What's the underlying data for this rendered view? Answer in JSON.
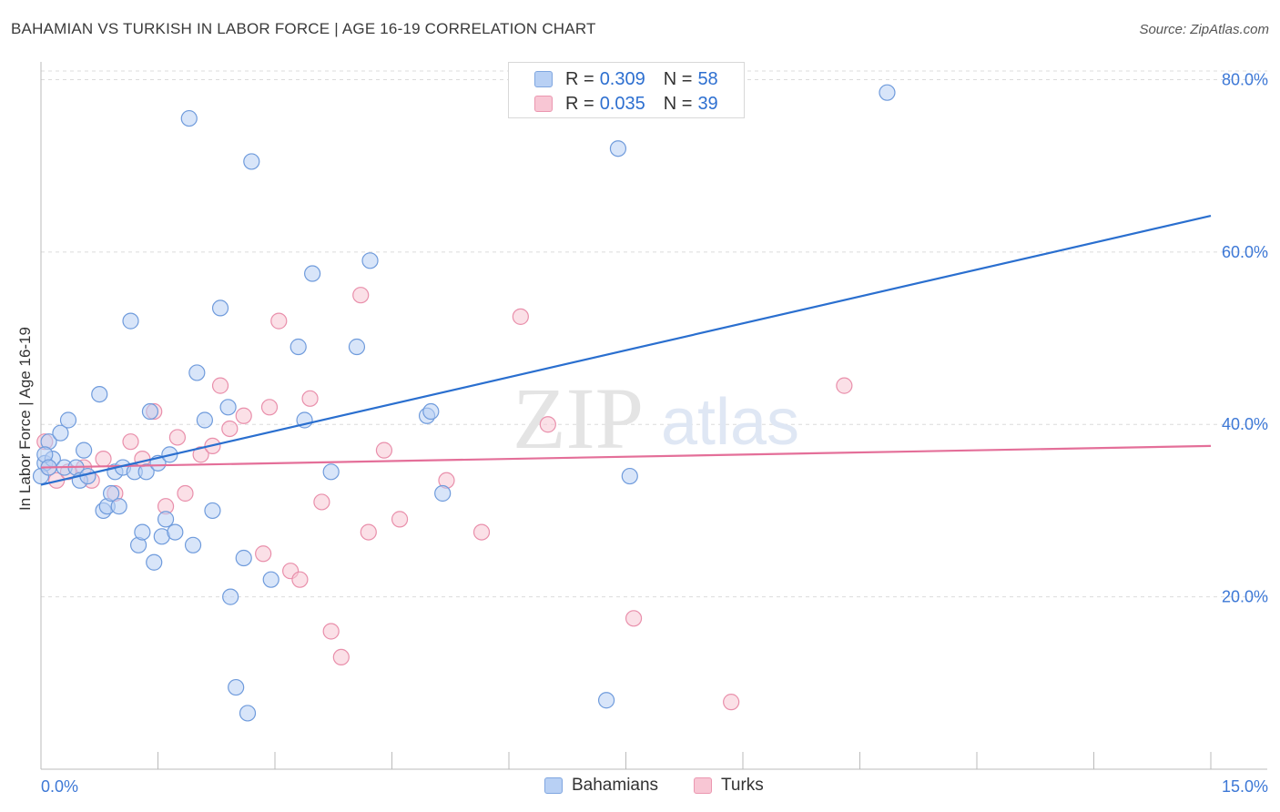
{
  "header": {
    "title": "BAHAMIAN VS TURKISH IN LABOR FORCE | AGE 16-19 CORRELATION CHART",
    "source": "Source: ZipAtlas.com"
  },
  "watermark": {
    "zip": "ZIP",
    "atlas": "atlas"
  },
  "legend": {
    "blue": {
      "r_label": "R = ",
      "r_value": "0.309",
      "n_label": "N = ",
      "n_value": "58"
    },
    "pink": {
      "r_label": "R = ",
      "r_value": "0.035",
      "n_label": "N = ",
      "n_value": "39"
    }
  },
  "colors": {
    "blue_fill": "#b8d0f4",
    "blue_stroke": "#6f9bdc",
    "blue_line": "#2a6fcf",
    "pink_fill": "#f8c6d4",
    "pink_stroke": "#e98fab",
    "pink_line": "#e46f99",
    "tick_label": "#3d78d6",
    "grid": "#dcdcdc"
  },
  "chart_data": {
    "type": "scatter",
    "title": "BAHAMIAN VS TURKISH IN LABOR FORCE | AGE 16-19 CORRELATION CHART",
    "xlabel": "",
    "ylabel": "In Labor Force | Age 16-19",
    "xlim": [
      0,
      15
    ],
    "ylim": [
      0,
      81
    ],
    "x_tick_labels": [
      "0.0%",
      "15.0%"
    ],
    "y_ticks": [
      20,
      40,
      60,
      80
    ],
    "y_tick_labels": [
      "20.0%",
      "40.0%",
      "60.0%",
      "80.0%"
    ],
    "grid": true,
    "legend_position": "top-center",
    "series": [
      {
        "name": "Bahamians",
        "color": "#b8d0f4",
        "trend": {
          "x": [
            0,
            15
          ],
          "y": [
            33.0,
            64.2
          ]
        },
        "points": [
          [
            0.05,
            35.5
          ],
          [
            0.1,
            38.0
          ],
          [
            0.15,
            36.0
          ],
          [
            0.25,
            39.0
          ],
          [
            0.3,
            35.0
          ],
          [
            0.35,
            40.5
          ],
          [
            0.45,
            35.0
          ],
          [
            0.5,
            33.5
          ],
          [
            0.55,
            37.0
          ],
          [
            0.6,
            34.0
          ],
          [
            0.75,
            43.5
          ],
          [
            0.8,
            30.0
          ],
          [
            0.85,
            30.5
          ],
          [
            0.9,
            32.0
          ],
          [
            0.95,
            34.5
          ],
          [
            1.0,
            30.5
          ],
          [
            1.05,
            35.0
          ],
          [
            1.15,
            52.0
          ],
          [
            1.2,
            34.5
          ],
          [
            1.25,
            26.0
          ],
          [
            1.3,
            27.5
          ],
          [
            1.35,
            34.5
          ],
          [
            1.4,
            41.5
          ],
          [
            1.45,
            24.0
          ],
          [
            1.5,
            35.5
          ],
          [
            1.55,
            27.0
          ],
          [
            1.6,
            29.0
          ],
          [
            1.65,
            36.5
          ],
          [
            1.72,
            27.5
          ],
          [
            1.9,
            75.5
          ],
          [
            1.95,
            26.0
          ],
          [
            2.0,
            46.0
          ],
          [
            2.1,
            40.5
          ],
          [
            2.2,
            30.0
          ],
          [
            2.3,
            53.5
          ],
          [
            2.4,
            42.0
          ],
          [
            2.43,
            20.0
          ],
          [
            2.5,
            9.5
          ],
          [
            2.6,
            24.5
          ],
          [
            2.65,
            6.5
          ],
          [
            2.7,
            70.5
          ],
          [
            2.95,
            22.0
          ],
          [
            3.3,
            49.0
          ],
          [
            3.38,
            40.5
          ],
          [
            3.48,
            57.5
          ],
          [
            3.72,
            34.5
          ],
          [
            4.05,
            49.0
          ],
          [
            4.22,
            59.0
          ],
          [
            4.95,
            41.0
          ],
          [
            5.0,
            41.5
          ],
          [
            5.15,
            32.0
          ],
          [
            7.25,
            8.0
          ],
          [
            7.4,
            72.0
          ],
          [
            7.55,
            34.0
          ],
          [
            10.85,
            78.5
          ],
          [
            0.0,
            34.0
          ],
          [
            0.05,
            36.5
          ],
          [
            0.1,
            35.0
          ]
        ]
      },
      {
        "name": "Turks",
        "color": "#f8c6d4",
        "trend": {
          "x": [
            0,
            15
          ],
          "y": [
            35.0,
            37.5
          ]
        },
        "points": [
          [
            0.05,
            38.0
          ],
          [
            0.1,
            35.0
          ],
          [
            0.2,
            33.5
          ],
          [
            0.35,
            34.5
          ],
          [
            0.55,
            35.0
          ],
          [
            0.65,
            33.5
          ],
          [
            0.8,
            36.0
          ],
          [
            0.95,
            32.0
          ],
          [
            1.15,
            38.0
          ],
          [
            1.3,
            36.0
          ],
          [
            1.45,
            41.5
          ],
          [
            1.6,
            30.5
          ],
          [
            1.75,
            38.5
          ],
          [
            1.85,
            32.0
          ],
          [
            2.05,
            36.5
          ],
          [
            2.2,
            37.5
          ],
          [
            2.3,
            44.5
          ],
          [
            2.42,
            39.5
          ],
          [
            2.6,
            41.0
          ],
          [
            2.85,
            25.0
          ],
          [
            2.93,
            42.0
          ],
          [
            3.05,
            52.0
          ],
          [
            3.2,
            23.0
          ],
          [
            3.32,
            22.0
          ],
          [
            3.45,
            43.0
          ],
          [
            3.6,
            31.0
          ],
          [
            3.72,
            16.0
          ],
          [
            3.85,
            13.0
          ],
          [
            4.1,
            55.0
          ],
          [
            4.2,
            27.5
          ],
          [
            4.4,
            37.0
          ],
          [
            4.6,
            29.0
          ],
          [
            5.2,
            33.5
          ],
          [
            5.65,
            27.5
          ],
          [
            6.15,
            52.5
          ],
          [
            6.5,
            40.0
          ],
          [
            7.6,
            17.5
          ],
          [
            8.85,
            7.8
          ],
          [
            10.3,
            44.5
          ]
        ]
      }
    ]
  }
}
